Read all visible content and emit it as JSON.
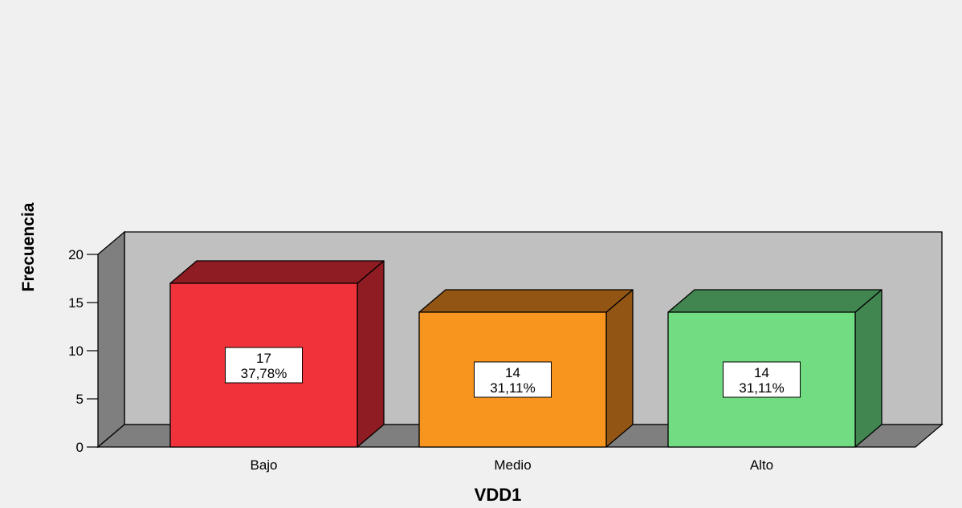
{
  "chart_data": {
    "type": "bar",
    "categories": [
      "Bajo",
      "Medio",
      "Alto"
    ],
    "values": [
      17,
      14,
      14
    ],
    "percent_labels": [
      "37,78%",
      "31,11%",
      "31,11%"
    ],
    "xlabel": "VDD1",
    "ylabel": "Frecuencia",
    "ylim": [
      0,
      20
    ],
    "yticks": [
      0,
      5,
      10,
      15,
      20
    ],
    "grid": false,
    "style": "3d",
    "colors": {
      "wall_back": "#c0c0c0",
      "wall_side": "#7f7f7f",
      "floor": "#7f7f7f",
      "bars": [
        {
          "front": "#f0323a",
          "side": "#8f1c22",
          "top": "#8f1c22"
        },
        {
          "front": "#f7951e",
          "side": "#925514",
          "top": "#925514"
        },
        {
          "front": "#71dc82",
          "side": "#418650",
          "top": "#418650"
        }
      ]
    }
  }
}
